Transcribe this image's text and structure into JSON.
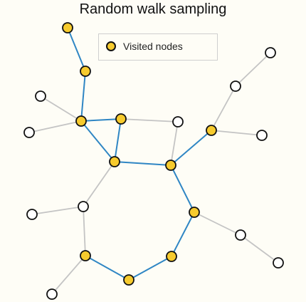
{
  "title": "Random walk sampling",
  "legend": {
    "label": "Visited nodes"
  },
  "colors": {
    "visited_fill": "#f7cb2e",
    "unvisited_fill": "#ffffff",
    "node_stroke": "#111111",
    "walk_edge": "#2f86c4",
    "other_edge": "#c4c4c4"
  },
  "graph": {
    "nodes": [
      {
        "id": "n1",
        "visited": true
      },
      {
        "id": "n2",
        "visited": true
      },
      {
        "id": "n3",
        "visited": true
      },
      {
        "id": "n4",
        "visited": true
      },
      {
        "id": "n5",
        "visited": true
      },
      {
        "id": "n6",
        "visited": true
      },
      {
        "id": "n7",
        "visited": true
      },
      {
        "id": "n8",
        "visited": true
      },
      {
        "id": "n9",
        "visited": true
      },
      {
        "id": "n10",
        "visited": true
      },
      {
        "id": "n11",
        "visited": true
      },
      {
        "id": "n12",
        "visited": false
      },
      {
        "id": "n13",
        "visited": false
      },
      {
        "id": "n14",
        "visited": false
      },
      {
        "id": "n15",
        "visited": false
      },
      {
        "id": "n16",
        "visited": false
      },
      {
        "id": "n17",
        "visited": false
      },
      {
        "id": "n18",
        "visited": false
      },
      {
        "id": "n19",
        "visited": false
      },
      {
        "id": "n20",
        "visited": false
      },
      {
        "id": "n21",
        "visited": false
      },
      {
        "id": "n22",
        "visited": false
      }
    ],
    "edges": [
      {
        "from": "n1",
        "to": "n2",
        "walk": true
      },
      {
        "from": "n2",
        "to": "n3",
        "walk": true
      },
      {
        "from": "n3",
        "to": "n4",
        "walk": true
      },
      {
        "from": "n3",
        "to": "n5",
        "walk": true
      },
      {
        "from": "n4",
        "to": "n5",
        "walk": true
      },
      {
        "from": "n5",
        "to": "n6",
        "walk": true
      },
      {
        "from": "n6",
        "to": "n7",
        "walk": true
      },
      {
        "from": "n6",
        "to": "n8",
        "walk": true
      },
      {
        "from": "n8",
        "to": "n9",
        "walk": true
      },
      {
        "from": "n9",
        "to": "n10",
        "walk": true
      },
      {
        "from": "n10",
        "to": "n11",
        "walk": true
      },
      {
        "from": "n3",
        "to": "n12",
        "walk": false
      },
      {
        "from": "n3",
        "to": "n13",
        "walk": false
      },
      {
        "from": "n4",
        "to": "n14",
        "walk": false
      },
      {
        "from": "n14",
        "to": "n6",
        "walk": false
      },
      {
        "from": "n7",
        "to": "n15",
        "walk": false
      },
      {
        "from": "n15",
        "to": "n16",
        "walk": false
      },
      {
        "from": "n7",
        "to": "n17",
        "walk": false
      },
      {
        "from": "n5",
        "to": "n18",
        "walk": false
      },
      {
        "from": "n18",
        "to": "n19",
        "walk": false
      },
      {
        "from": "n18",
        "to": "n11",
        "walk": false
      },
      {
        "from": "n11",
        "to": "n20",
        "walk": false
      },
      {
        "from": "n8",
        "to": "n21",
        "walk": false
      },
      {
        "from": "n21",
        "to": "n22",
        "walk": false
      }
    ]
  }
}
